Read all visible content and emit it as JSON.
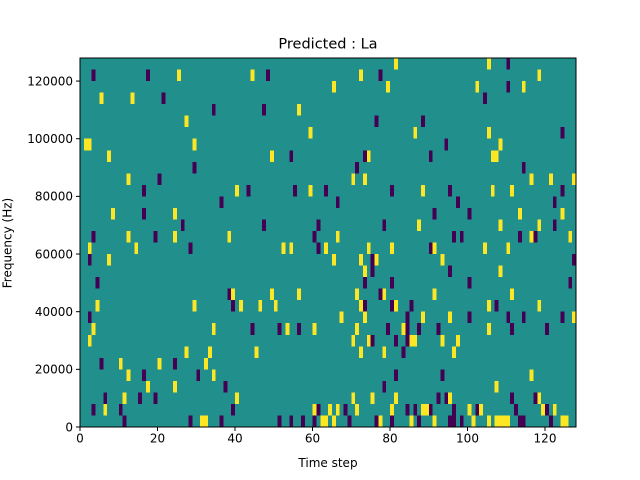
{
  "chart_data": {
    "type": "heatmap",
    "title": "Predicted : La",
    "xlabel": "Time step",
    "ylabel": "Frequency (Hz)",
    "xlim": [
      0,
      128
    ],
    "ylim": [
      0,
      128000
    ],
    "x_ticks": [
      0,
      20,
      40,
      60,
      80,
      100,
      120
    ],
    "y_ticks": [
      0,
      20000,
      40000,
      60000,
      80000,
      100000,
      120000
    ],
    "colormap": "viridis",
    "background_value": "middle",
    "cell_width_steps": 1,
    "cell_height_hz": 4000,
    "cells_low": [
      [
        3,
        120000
      ],
      [
        17,
        120000
      ],
      [
        48,
        120000
      ],
      [
        77,
        120000
      ],
      [
        110,
        124000
      ],
      [
        34,
        108000
      ],
      [
        47,
        108000
      ],
      [
        76,
        104000
      ],
      [
        88,
        104000
      ],
      [
        94,
        96000
      ],
      [
        124,
        100000
      ],
      [
        21,
        112000
      ],
      [
        73,
        92000
      ],
      [
        104,
        112000
      ],
      [
        110,
        116000
      ],
      [
        29,
        88000
      ],
      [
        20,
        84000
      ],
      [
        54,
        92000
      ],
      [
        71,
        88000
      ],
      [
        90,
        92000
      ],
      [
        16,
        80000
      ],
      [
        36,
        76000
      ],
      [
        43,
        80000
      ],
      [
        55,
        80000
      ],
      [
        63,
        80000
      ],
      [
        80,
        80000
      ],
      [
        95,
        80000
      ],
      [
        114,
        88000
      ],
      [
        124,
        80000
      ],
      [
        16,
        72000
      ],
      [
        66,
        76000
      ],
      [
        91,
        72000
      ],
      [
        97,
        76000
      ],
      [
        100,
        72000
      ],
      [
        122,
        76000
      ],
      [
        26,
        68000
      ],
      [
        47,
        68000
      ],
      [
        61,
        68000
      ],
      [
        78,
        68000
      ],
      [
        122,
        68000
      ],
      [
        3,
        64000
      ],
      [
        19,
        64000
      ],
      [
        60,
        64000
      ],
      [
        61,
        60000
      ],
      [
        90,
        60000
      ],
      [
        96,
        64000
      ],
      [
        98,
        64000
      ],
      [
        113,
        64000
      ],
      [
        117,
        64000
      ],
      [
        2,
        56000
      ],
      [
        28,
        60000
      ],
      [
        75,
        56000
      ],
      [
        95,
        52000
      ],
      [
        127,
        56000
      ],
      [
        4,
        48000
      ],
      [
        73,
        48000
      ],
      [
        75,
        52000
      ],
      [
        80,
        48000
      ],
      [
        100,
        48000
      ],
      [
        126,
        48000
      ],
      [
        38,
        44000
      ],
      [
        39,
        40000
      ],
      [
        73,
        40000
      ],
      [
        77,
        44000
      ],
      [
        80,
        40000
      ],
      [
        85,
        40000
      ],
      [
        44,
        32000
      ],
      [
        51,
        32000
      ],
      [
        56,
        32000
      ],
      [
        79,
        32000
      ],
      [
        81,
        28000
      ],
      [
        84,
        36000
      ],
      [
        84,
        32000
      ],
      [
        92,
        32000
      ],
      [
        110,
        36000
      ],
      [
        114,
        36000
      ],
      [
        120,
        32000
      ],
      [
        2,
        36000
      ],
      [
        75,
        28000
      ],
      [
        87,
        32000
      ],
      [
        100,
        36000
      ],
      [
        107,
        40000
      ],
      [
        111,
        32000
      ],
      [
        124,
        36000
      ],
      [
        83,
        24000
      ],
      [
        84,
        28000
      ],
      [
        5,
        20000
      ],
      [
        24,
        20000
      ],
      [
        30,
        16000
      ],
      [
        37,
        12000
      ],
      [
        40,
        8000
      ],
      [
        10,
        4000
      ],
      [
        11,
        0
      ],
      [
        19,
        8000
      ],
      [
        28,
        0
      ],
      [
        36,
        0
      ],
      [
        57,
        0
      ],
      [
        60,
        0
      ],
      [
        61,
        4000
      ],
      [
        68,
        4000
      ],
      [
        69,
        0
      ],
      [
        76,
        0
      ],
      [
        81,
        16000
      ],
      [
        86,
        4000
      ],
      [
        87,
        0
      ],
      [
        90,
        4000
      ],
      [
        93,
        16000
      ],
      [
        94,
        8000
      ],
      [
        96,
        4000
      ],
      [
        98,
        0
      ],
      [
        101,
        0
      ],
      [
        102,
        4000
      ],
      [
        111,
        8000
      ],
      [
        112,
        4000
      ],
      [
        113,
        0
      ],
      [
        114,
        0
      ],
      [
        117,
        8000
      ],
      [
        120,
        4000
      ],
      [
        121,
        0
      ],
      [
        3,
        4000
      ],
      [
        6,
        8000
      ],
      [
        15,
        8000
      ],
      [
        16,
        16000
      ],
      [
        39,
        4000
      ],
      [
        51,
        0
      ],
      [
        54,
        0
      ],
      [
        78,
        12000
      ],
      [
        80,
        0
      ],
      [
        84,
        4000
      ],
      [
        92,
        8000
      ],
      [
        95,
        0
      ],
      [
        96,
        0
      ]
    ],
    "cells_high": [
      [
        25,
        120000
      ],
      [
        44,
        120000
      ],
      [
        72,
        120000
      ],
      [
        81,
        124000
      ],
      [
        105,
        124000
      ],
      [
        118,
        120000
      ],
      [
        5,
        112000
      ],
      [
        13,
        112000
      ],
      [
        27,
        104000
      ],
      [
        56,
        108000
      ],
      [
        65,
        116000
      ],
      [
        79,
        116000
      ],
      [
        102,
        116000
      ],
      [
        114,
        116000
      ],
      [
        1,
        96000
      ],
      [
        2,
        96000
      ],
      [
        7,
        92000
      ],
      [
        12,
        84000
      ],
      [
        29,
        96000
      ],
      [
        49,
        92000
      ],
      [
        59,
        100000
      ],
      [
        74,
        92000
      ],
      [
        86,
        100000
      ],
      [
        105,
        100000
      ],
      [
        106,
        92000
      ],
      [
        107,
        92000
      ],
      [
        108,
        96000
      ],
      [
        116,
        84000
      ],
      [
        121,
        84000
      ],
      [
        88,
        80000
      ],
      [
        8,
        72000
      ],
      [
        24,
        72000
      ],
      [
        40,
        80000
      ],
      [
        59,
        80000
      ],
      [
        70,
        84000
      ],
      [
        73,
        84000
      ],
      [
        106,
        80000
      ],
      [
        111,
        80000
      ],
      [
        127,
        84000
      ],
      [
        12,
        64000
      ],
      [
        24,
        64000
      ],
      [
        38,
        64000
      ],
      [
        52,
        60000
      ],
      [
        54,
        60000
      ],
      [
        63,
        60000
      ],
      [
        65,
        56000
      ],
      [
        66,
        64000
      ],
      [
        72,
        56000
      ],
      [
        73,
        52000
      ],
      [
        74,
        60000
      ],
      [
        76,
        56000
      ],
      [
        80,
        60000
      ],
      [
        87,
        68000
      ],
      [
        91,
        60000
      ],
      [
        108,
        68000
      ],
      [
        113,
        72000
      ],
      [
        116,
        64000
      ],
      [
        118,
        68000
      ],
      [
        124,
        72000
      ],
      [
        2,
        60000
      ],
      [
        7,
        56000
      ],
      [
        14,
        60000
      ],
      [
        93,
        56000
      ],
      [
        104,
        60000
      ],
      [
        108,
        52000
      ],
      [
        110,
        60000
      ],
      [
        126,
        64000
      ],
      [
        4,
        40000
      ],
      [
        29,
        40000
      ],
      [
        39,
        44000
      ],
      [
        41,
        40000
      ],
      [
        46,
        40000
      ],
      [
        49,
        44000
      ],
      [
        50,
        40000
      ],
      [
        56,
        44000
      ],
      [
        67,
        36000
      ],
      [
        71,
        44000
      ],
      [
        72,
        40000
      ],
      [
        73,
        36000
      ],
      [
        78,
        44000
      ],
      [
        81,
        40000
      ],
      [
        88,
        36000
      ],
      [
        91,
        44000
      ],
      [
        95,
        36000
      ],
      [
        105,
        40000
      ],
      [
        111,
        44000
      ],
      [
        118,
        40000
      ],
      [
        127,
        36000
      ],
      [
        3,
        32000
      ],
      [
        34,
        32000
      ],
      [
        53,
        32000
      ],
      [
        60,
        32000
      ],
      [
        71,
        32000
      ],
      [
        70,
        28000
      ],
      [
        72,
        24000
      ],
      [
        74,
        28000
      ],
      [
        78,
        24000
      ],
      [
        85,
        28000
      ],
      [
        86,
        28000
      ],
      [
        93,
        28000
      ],
      [
        97,
        28000
      ],
      [
        105,
        32000
      ],
      [
        10,
        20000
      ],
      [
        12,
        16000
      ],
      [
        17,
        12000
      ],
      [
        20,
        20000
      ],
      [
        24,
        12000
      ],
      [
        32,
        20000
      ],
      [
        34,
        16000
      ],
      [
        40,
        8000
      ],
      [
        60,
        4000
      ],
      [
        62,
        0
      ],
      [
        63,
        0
      ],
      [
        64,
        4000
      ],
      [
        65,
        0
      ],
      [
        66,
        4000
      ],
      [
        70,
        8000
      ],
      [
        71,
        4000
      ],
      [
        75,
        8000
      ],
      [
        77,
        0
      ],
      [
        80,
        4000
      ],
      [
        81,
        8000
      ],
      [
        85,
        0
      ],
      [
        88,
        4000
      ],
      [
        89,
        4000
      ],
      [
        91,
        0
      ],
      [
        95,
        8000
      ],
      [
        100,
        4000
      ],
      [
        101,
        0
      ],
      [
        103,
        4000
      ],
      [
        105,
        0
      ],
      [
        107,
        0
      ],
      [
        108,
        0
      ],
      [
        109,
        0
      ],
      [
        110,
        0
      ],
      [
        116,
        16000
      ],
      [
        118,
        8000
      ],
      [
        119,
        4000
      ],
      [
        122,
        4000
      ],
      [
        124,
        0
      ],
      [
        125,
        0
      ],
      [
        6,
        4000
      ],
      [
        31,
        0
      ],
      [
        32,
        0
      ],
      [
        11,
        8000
      ],
      [
        27,
        24000
      ],
      [
        33,
        24000
      ],
      [
        45,
        24000
      ],
      [
        96,
        24000
      ],
      [
        83,
        32000
      ],
      [
        107,
        12000
      ],
      [
        2,
        28000
      ]
    ]
  }
}
